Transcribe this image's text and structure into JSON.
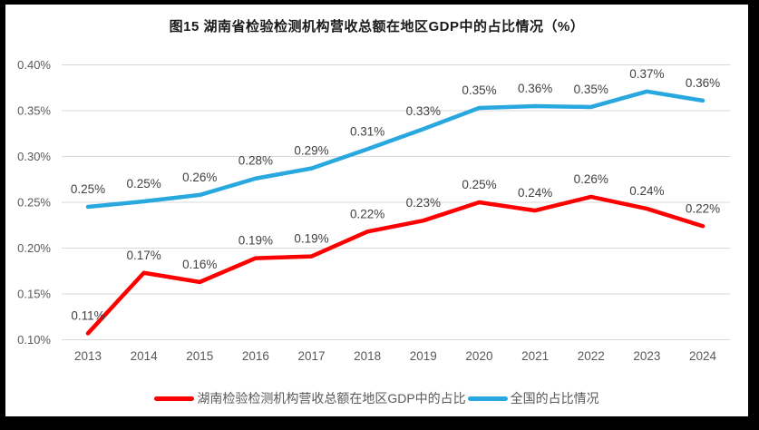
{
  "title": "图15 湖南省检验检测机构营收总额在地区GDP中的占比情况（%）",
  "chart_data": {
    "type": "line",
    "title": "图15 湖南省检验检测机构营收总额在地区GDP中的占比情况（%）",
    "categories": [
      "2013",
      "2014",
      "2015",
      "2016",
      "2017",
      "2018",
      "2019",
      "2020",
      "2021",
      "2022",
      "2023",
      "2024"
    ],
    "series": [
      {
        "name": "湖南检验检测机构营收总额在地区GDP中的占比",
        "color": "#FE0000",
        "values": [
          0.11,
          0.17,
          0.16,
          0.19,
          0.19,
          0.22,
          0.23,
          0.25,
          0.24,
          0.26,
          0.24,
          0.22
        ],
        "labels": [
          "0.11%",
          "0.17%",
          "0.16%",
          "0.19%",
          "0.19%",
          "0.22%",
          "0.23%",
          "0.25%",
          "0.24%",
          "0.26%",
          "0.24%",
          "0.22%"
        ],
        "values_precise": [
          0.107,
          0.173,
          0.163,
          0.189,
          0.191,
          0.218,
          0.23,
          0.25,
          0.241,
          0.256,
          0.243,
          0.224
        ]
      },
      {
        "name": "全国的占比情况",
        "color": "#29A8DF",
        "values": [
          0.25,
          0.25,
          0.26,
          0.28,
          0.29,
          0.31,
          0.33,
          0.35,
          0.36,
          0.35,
          0.37,
          0.36
        ],
        "labels": [
          "0.25%",
          "0.25%",
          "0.26%",
          "0.28%",
          "0.29%",
          "0.31%",
          "0.33%",
          "0.35%",
          "0.36%",
          "0.35%",
          "0.37%",
          "0.36%"
        ],
        "values_precise": [
          0.245,
          0.251,
          0.258,
          0.276,
          0.287,
          0.308,
          0.33,
          0.353,
          0.355,
          0.354,
          0.371,
          0.361
        ]
      }
    ],
    "xlabel": "",
    "ylabel": "",
    "ylim": [
      0.1,
      0.4
    ],
    "ytick_step": 0.05,
    "yticks": [
      "0.40%",
      "0.35%",
      "0.30%",
      "0.25%",
      "0.20%",
      "0.15%",
      "0.10%"
    ],
    "grid": true,
    "legend_position": "bottom",
    "colors": {
      "grid": "#D9D9D9",
      "axis_text": "#595959",
      "data_label_text": "#404040",
      "background": "#FFFFFF",
      "frame_border": "#000000"
    }
  }
}
